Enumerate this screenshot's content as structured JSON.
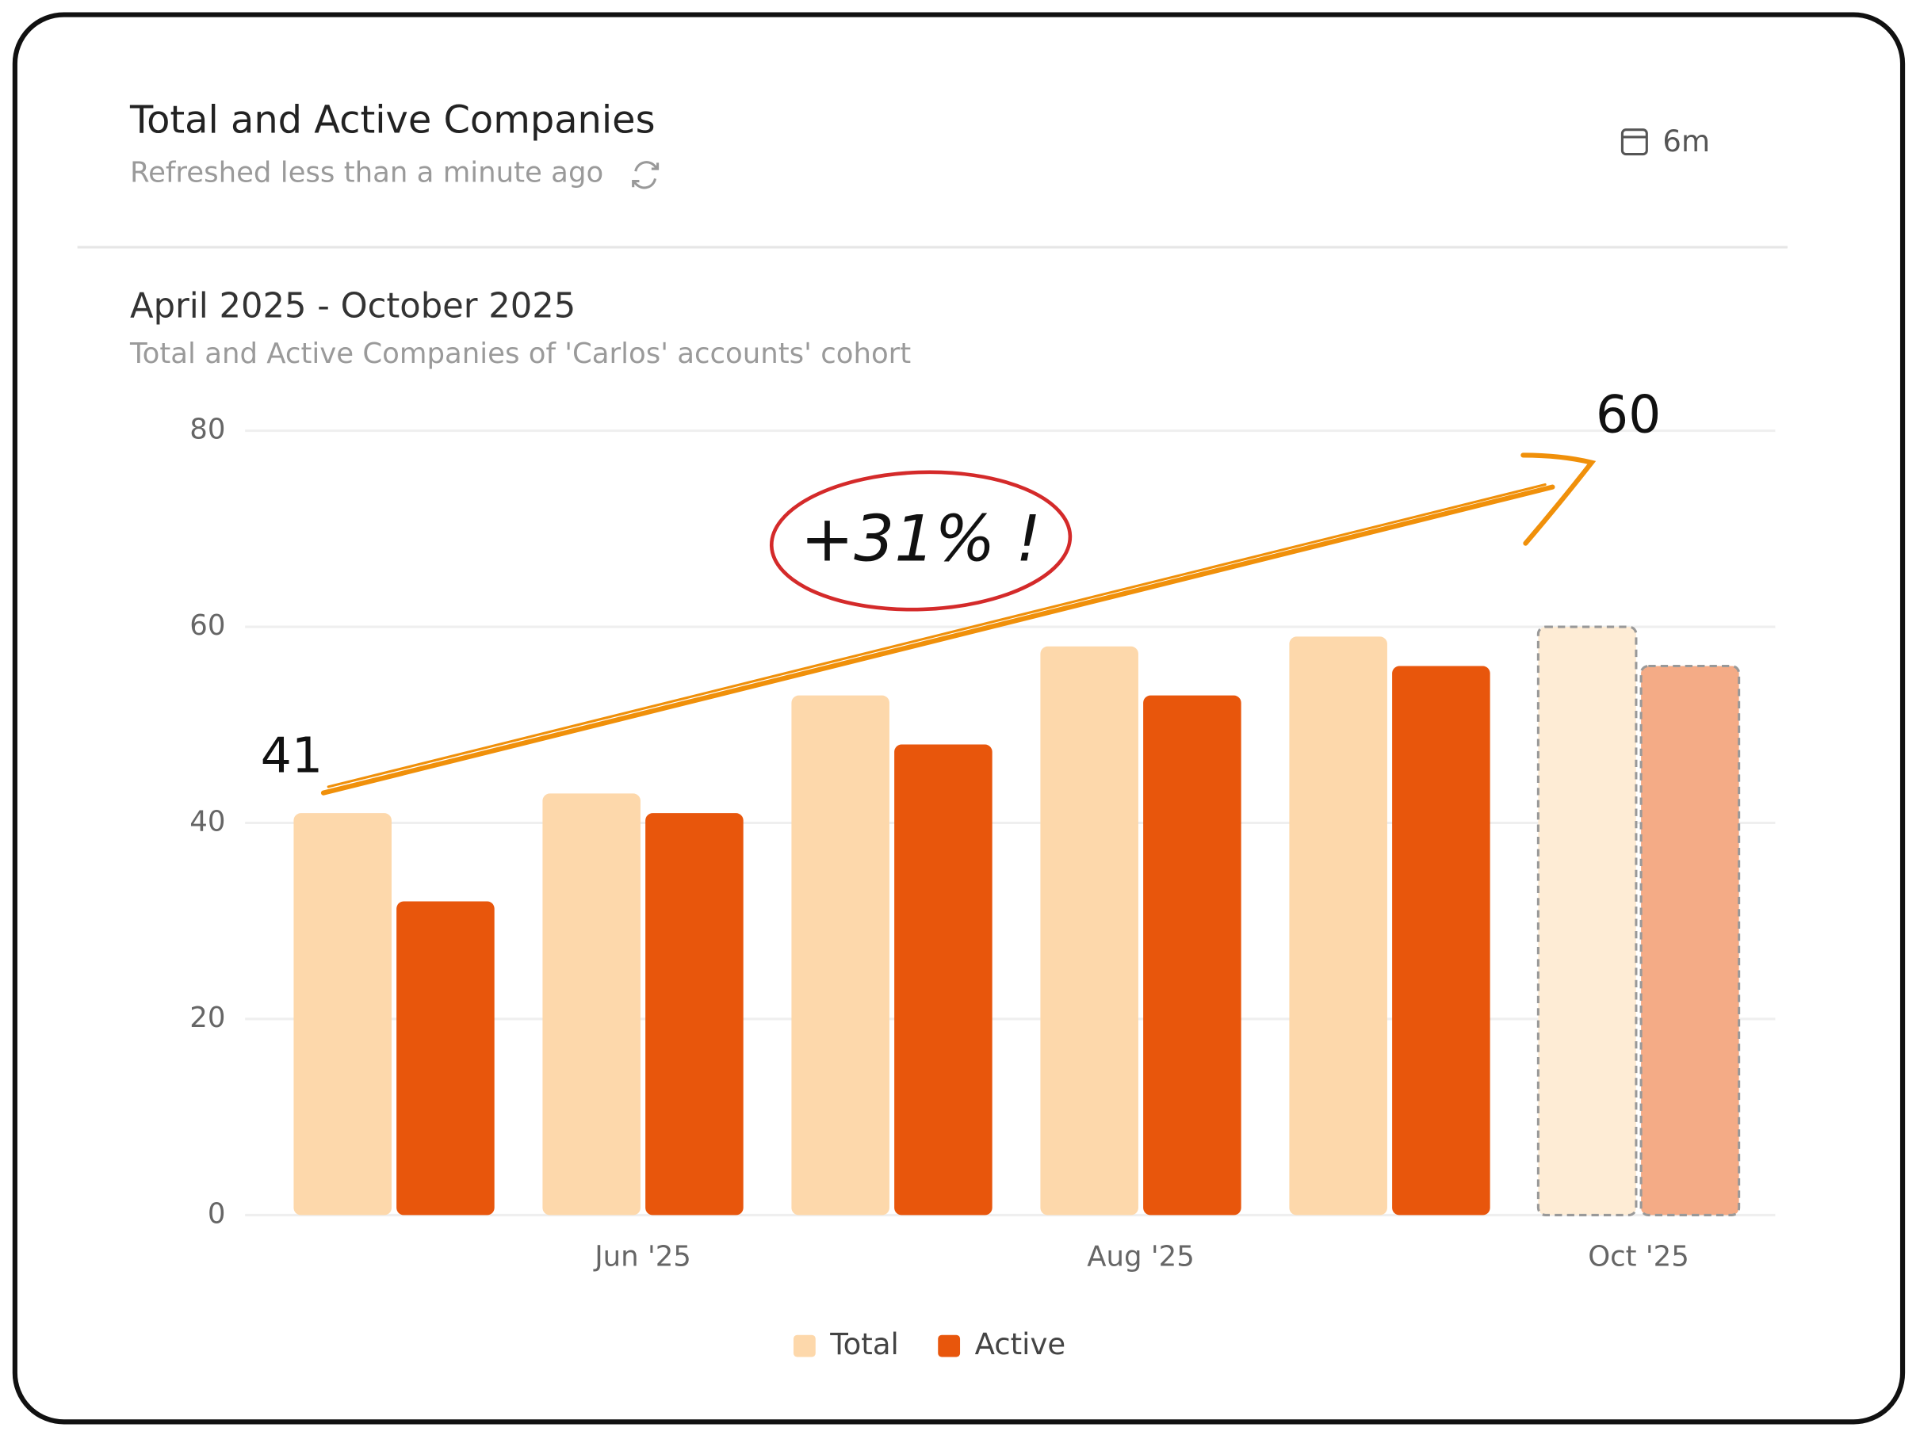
{
  "header": {
    "title": "Total and Active Companies",
    "subtitle": "Refreshed less than a minute ago",
    "range": "6m"
  },
  "chart_data": {
    "type": "bar",
    "title": "April 2025 - October 2025",
    "subtitle": "Total and Active Companies of 'Carlos' accounts' cohort",
    "categories": [
      null,
      "Jun '25",
      null,
      "Aug '25",
      null,
      "Oct '25"
    ],
    "series": [
      {
        "name": "Total",
        "color": "#fdd8ab",
        "values": [
          41,
          43,
          53,
          58,
          59,
          60
        ]
      },
      {
        "name": "Active",
        "color": "#e8560c",
        "values": [
          32,
          41,
          48,
          53,
          56,
          56
        ]
      }
    ],
    "ylim": [
      0,
      80
    ],
    "yticks": [
      0,
      20,
      40,
      60,
      80
    ],
    "grid": true,
    "legend": "bottom",
    "annotations": [
      "41",
      "+31% !",
      "60"
    ]
  }
}
